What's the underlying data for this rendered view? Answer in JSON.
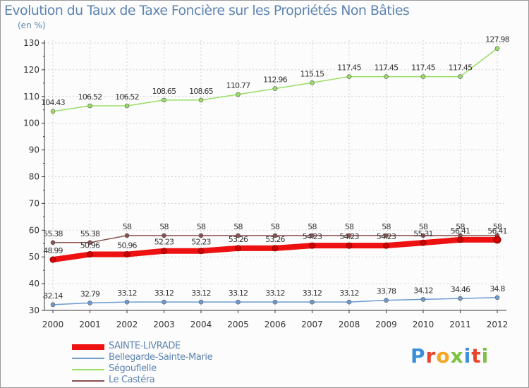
{
  "header": {
    "title": "Evolution du Taux de Taxe Foncière sur les Propriétés Non Bâties",
    "unit": "(en %)"
  },
  "logo": {
    "text": "Proxiti",
    "letters": [
      "P",
      "r",
      "o",
      "x",
      "i",
      "t",
      "i"
    ]
  },
  "chart_data": {
    "type": "line",
    "title": "Evolution du Taux de Taxe Foncière sur les Propriétés Non Bâties",
    "ylabel": "(en %)",
    "xlabel": "",
    "ylim": [
      30,
      130
    ],
    "yticks": [
      30,
      40,
      50,
      60,
      70,
      80,
      90,
      100,
      110,
      120,
      130
    ],
    "categories": [
      "2000",
      "2001",
      "2002",
      "2003",
      "2004",
      "2005",
      "2006",
      "2007",
      "2008",
      "2009",
      "2010",
      "2011",
      "2012"
    ],
    "series": [
      {
        "name": "SAINTE-LIVRADE",
        "color": "#ee1111",
        "values": [
          48.99,
          50.96,
          50.96,
          52.23,
          52.23,
          53.26,
          53.26,
          54.23,
          54.23,
          54.23,
          55.31,
          56.41,
          56.41
        ],
        "labels": [
          "48.99",
          "50.96",
          "50.96",
          "52.23",
          "52.23",
          "53.26",
          "53.26",
          "54.23",
          "54.23",
          "54.23",
          "55.31",
          "56.41",
          "56.41"
        ]
      },
      {
        "name": "Bellegarde-Sainte-Marie",
        "color": "#6d9bd0",
        "values": [
          32.14,
          32.79,
          33.12,
          33.12,
          33.12,
          33.12,
          33.12,
          33.12,
          33.12,
          33.78,
          34.12,
          34.46,
          34.8
        ],
        "labels": [
          "32.14",
          "32.79",
          "33.12",
          "33.12",
          "33.12",
          "33.12",
          "33.12",
          "33.12",
          "33.12",
          "33.78",
          "34.12",
          "34.46",
          "34.8"
        ]
      },
      {
        "name": "Ségoufielle",
        "color": "#99dd66",
        "values": [
          104.43,
          106.52,
          106.52,
          108.65,
          108.65,
          110.77,
          112.96,
          115.15,
          117.45,
          117.45,
          117.45,
          117.45,
          127.98
        ],
        "labels": [
          "104.43",
          "106.52",
          "106.52",
          "108.65",
          "108.65",
          "110.77",
          "112.96",
          "115.15",
          "117.45",
          "117.45",
          "117.45",
          "117.45",
          "127.98"
        ]
      },
      {
        "name": "Le Castéra",
        "color": "#8b5050",
        "values": [
          55.38,
          55.38,
          58,
          58,
          58,
          58,
          58,
          58,
          58,
          58,
          58,
          58,
          58
        ],
        "labels": [
          "55.38",
          "55.38",
          "58",
          "58",
          "58",
          "58",
          "58",
          "58",
          "58",
          "58",
          "58",
          "58",
          "58"
        ]
      }
    ],
    "legend_position": "bottom-left"
  }
}
